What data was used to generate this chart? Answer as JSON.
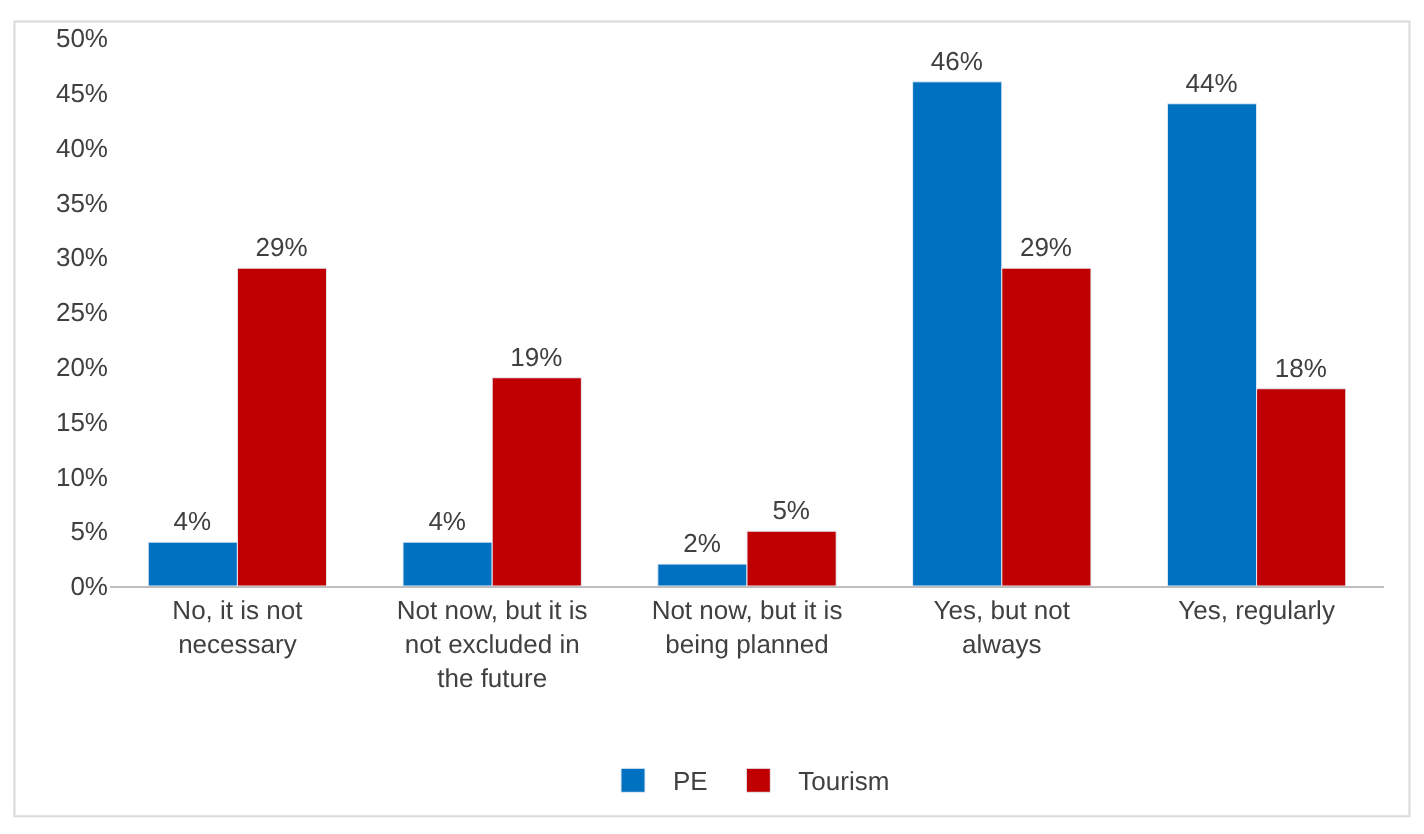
{
  "chart_data": {
    "type": "bar",
    "categories": [
      "No, it is not necessary",
      "Not now, but it is not excluded in the future",
      "Not now, but it is being planned",
      "Yes, but not always",
      "Yes, regularly"
    ],
    "series": [
      {
        "name": "PE",
        "color": "#0070c0",
        "values": [
          4,
          4,
          2,
          46,
          44
        ],
        "value_labels": [
          "4%",
          "4%",
          "2%",
          "46%",
          "44%"
        ]
      },
      {
        "name": "Tourism",
        "color": "#c00000",
        "values": [
          29,
          19,
          5,
          29,
          18
        ],
        "value_labels": [
          "29%",
          "19%",
          "5%",
          "29%",
          "18%"
        ]
      }
    ],
    "ylim": [
      0,
      50
    ],
    "yticks": [
      {
        "value": 0,
        "label": "0%"
      },
      {
        "value": 5,
        "label": "5%"
      },
      {
        "value": 10,
        "label": "10%"
      },
      {
        "value": 15,
        "label": "15%"
      },
      {
        "value": 20,
        "label": "20%"
      },
      {
        "value": 25,
        "label": "25%"
      },
      {
        "value": 30,
        "label": "30%"
      },
      {
        "value": 35,
        "label": "35%"
      },
      {
        "value": 40,
        "label": "40%"
      },
      {
        "value": 45,
        "label": "45%"
      },
      {
        "value": 50,
        "label": "50%"
      }
    ],
    "grid": false,
    "legend": "bottom"
  }
}
